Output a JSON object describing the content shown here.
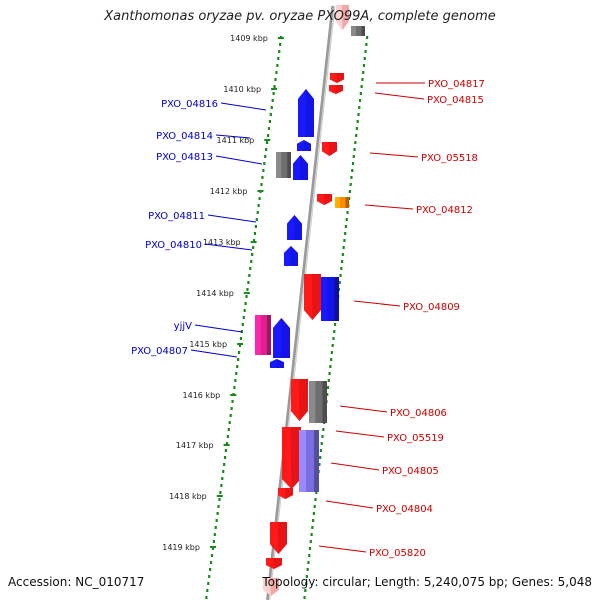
{
  "title": "Xanthomonas oryzae pv. oryzae PXO99A, complete genome",
  "footer": {
    "accession": "Accession: NC_010717",
    "topology": "Topology: circular; Length: 5,240,075 bp; Genes: 5,048"
  },
  "colors": {
    "forward_gene": "#1414e6",
    "reverse_gene": "#e61414",
    "unknown_gene": "#6e6e6e",
    "orange_gene": "#ff8c00",
    "pink_gene": "#e01e8c",
    "slate_gene": "#7a6ee0",
    "backbone": "#999999",
    "tick": "#1a8a1a",
    "forward_label": "#0000cc",
    "reverse_label": "#cc0000"
  },
  "kbp_ticks": [
    "1409 kbp",
    "1410 kbp",
    "1411 kbp",
    "1412 kbp",
    "1413 kbp",
    "1414 kbp",
    "1415 kbp",
    "1416 kbp",
    "1417 kbp",
    "1418 kbp",
    "1419 kbp"
  ],
  "forward_labels": [
    "PXO_04816",
    "PXO_04814",
    "PXO_04813",
    "PXO_04811",
    "PXO_04810",
    "yjjV",
    "PXO_04807"
  ],
  "reverse_labels": [
    "PXO_04817",
    "PXO_04815",
    "PXO_05518",
    "PXO_04812",
    "PXO_04809",
    "PXO_04806",
    "PXO_05519",
    "PXO_04805",
    "PXO_04804",
    "PXO_05820"
  ]
}
